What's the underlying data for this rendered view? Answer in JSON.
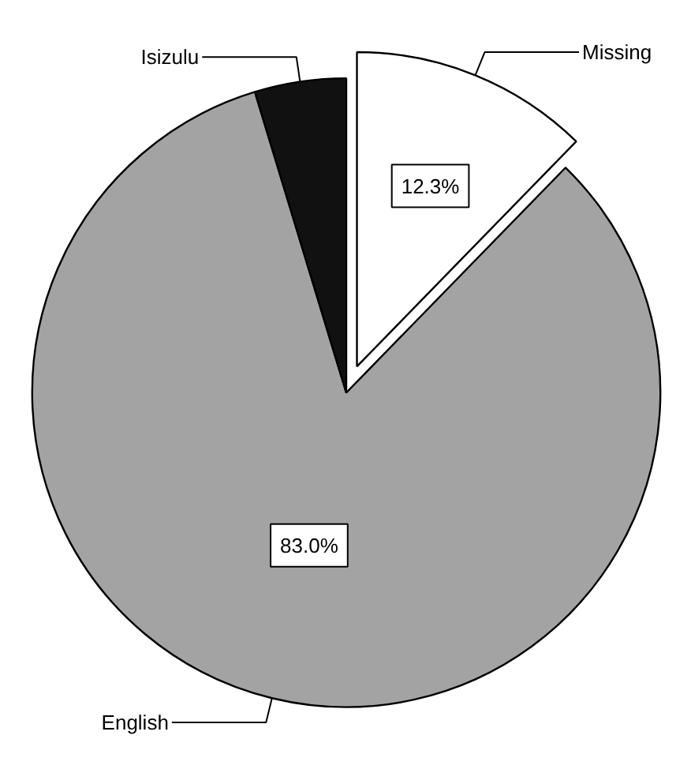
{
  "chart_data": {
    "type": "pie",
    "categories": [
      "Missing",
      "English",
      "Isizulu"
    ],
    "values": [
      12.3,
      83.0,
      4.7
    ],
    "colors": [
      "#ffffff",
      "#a3a3a3",
      "#111111"
    ],
    "value_labels": [
      "12.3%",
      "83.0%",
      null
    ]
  }
}
